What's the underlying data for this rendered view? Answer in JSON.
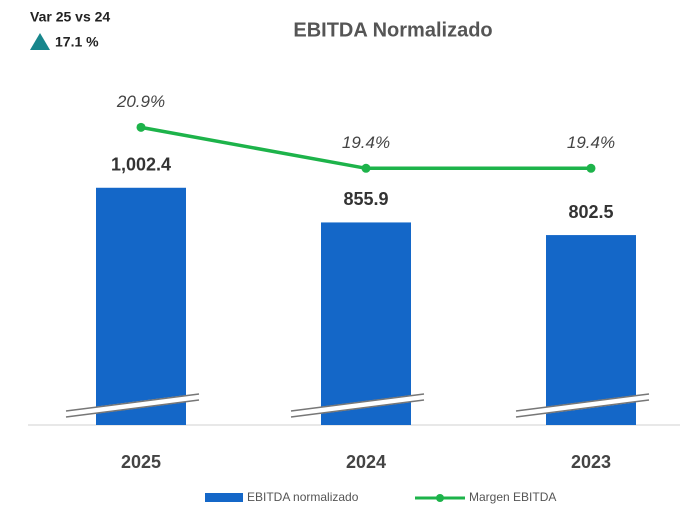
{
  "chart_data": {
    "type": "bar",
    "title": "EBITDA Normalizado",
    "annotations": [
      "Var 25 vs 24",
      "17.1 %"
    ],
    "categories": [
      "2025",
      "2024",
      "2023"
    ],
    "series": [
      {
        "name": "EBITDA normalizado",
        "type": "bar",
        "color": "#1467c8",
        "values": [
          1002.4,
          855.9,
          802.5
        ],
        "value_labels": [
          "1,002.4",
          "855.9",
          "802.5"
        ]
      },
      {
        "name": "Margen EBITDA",
        "type": "line",
        "axis": "y2",
        "color": "#1db34a",
        "values": [
          20.9,
          19.4,
          19.4
        ],
        "value_labels": [
          "20.9%",
          "19.4%",
          "19.4%"
        ]
      }
    ],
    "ylim": [
      0,
      1500
    ],
    "y2lim": [
      10,
      23
    ],
    "annotation_color": "#17868c"
  }
}
